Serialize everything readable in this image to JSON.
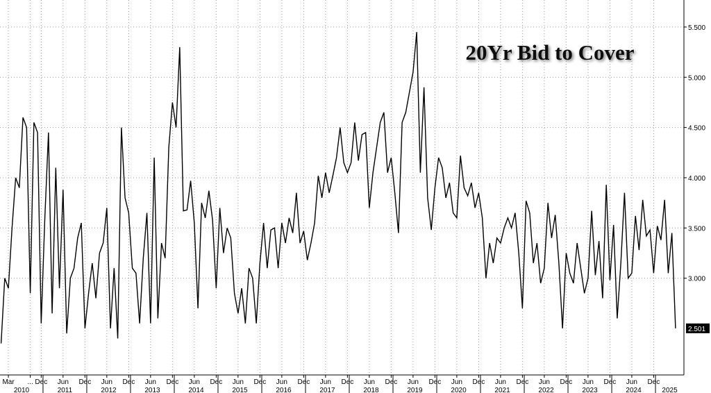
{
  "chart_data": {
    "type": "line",
    "title": "20Yr Bid to Cover",
    "color": "#000000",
    "values": [
      2.35,
      3.0,
      2.9,
      3.5,
      4.0,
      3.9,
      4.6,
      4.5,
      2.85,
      4.55,
      4.45,
      2.55,
      3.6,
      4.45,
      2.65,
      4.1,
      2.9,
      3.88,
      2.45,
      3.0,
      3.1,
      3.4,
      3.55,
      2.5,
      2.85,
      3.15,
      2.8,
      3.25,
      3.35,
      3.7,
      2.5,
      3.1,
      2.4,
      4.5,
      3.8,
      3.65,
      3.1,
      3.05,
      2.55,
      3.2,
      3.65,
      2.55,
      4.2,
      2.6,
      3.35,
      3.2,
      4.3,
      4.75,
      4.5,
      5.3,
      3.67,
      3.68,
      3.97,
      3.55,
      2.7,
      3.75,
      3.6,
      3.87,
      3.58,
      2.9,
      3.7,
      3.25,
      3.5,
      3.4,
      2.85,
      2.65,
      2.9,
      2.55,
      3.1,
      3.0,
      2.55,
      3.15,
      3.55,
      3.1,
      3.48,
      3.5,
      3.1,
      3.55,
      3.35,
      3.6,
      3.45,
      3.85,
      3.35,
      3.47,
      3.18,
      3.35,
      3.55,
      4.02,
      3.8,
      4.05,
      3.85,
      4.02,
      4.2,
      4.5,
      4.15,
      4.05,
      4.15,
      4.55,
      4.17,
      4.43,
      4.45,
      3.7,
      4.05,
      4.3,
      4.55,
      4.65,
      4.05,
      4.2,
      3.85,
      3.45,
      4.55,
      4.65,
      4.85,
      5.05,
      5.45,
      4.05,
      4.9,
      3.8,
      3.48,
      3.9,
      4.2,
      4.1,
      3.8,
      3.95,
      3.65,
      3.6,
      4.22,
      3.9,
      3.82,
      3.95,
      3.7,
      3.85,
      3.6,
      3.0,
      3.35,
      3.15,
      3.4,
      3.35,
      3.5,
      3.6,
      3.5,
      3.65,
      3.25,
      2.7,
      3.77,
      3.65,
      3.15,
      3.35,
      2.95,
      3.1,
      3.75,
      3.4,
      3.63,
      3.15,
      2.5,
      3.25,
      3.05,
      2.95,
      3.35,
      3.1,
      2.85,
      3.0,
      3.67,
      3.03,
      3.37,
      2.8,
      3.93,
      2.98,
      3.53,
      2.6,
      3.15,
      3.85,
      3.0,
      3.05,
      3.62,
      3.28,
      3.78,
      3.42,
      3.48,
      3.05,
      3.52,
      3.38,
      3.78,
      3.05,
      3.45,
      2.501
    ],
    "xlim": [
      -0.3,
      187.3
    ],
    "xticks": [
      {
        "value": 2,
        "label": "Mar"
      },
      {
        "value": 8,
        "label": "..."
      },
      {
        "value": 11,
        "label": "Dec"
      },
      {
        "value": 17,
        "label": "Jun"
      },
      {
        "value": 23,
        "label": "Dec"
      },
      {
        "value": 29,
        "label": "Jun"
      },
      {
        "value": 35,
        "label": "Dec"
      },
      {
        "value": 41,
        "label": "Jun"
      },
      {
        "value": 47,
        "label": "Dec"
      },
      {
        "value": 53,
        "label": "Jun"
      },
      {
        "value": 59,
        "label": "Dec"
      },
      {
        "value": 65,
        "label": "Jun"
      },
      {
        "value": 71,
        "label": "Dec"
      },
      {
        "value": 77,
        "label": "Jun"
      },
      {
        "value": 83,
        "label": "Dec"
      },
      {
        "value": 89,
        "label": "Jun"
      },
      {
        "value": 95,
        "label": "Dec"
      },
      {
        "value": 101,
        "label": "Jun"
      },
      {
        "value": 107,
        "label": "Dec"
      },
      {
        "value": 113,
        "label": "Jun"
      },
      {
        "value": 119,
        "label": "Dec"
      },
      {
        "value": 125,
        "label": "Jun"
      },
      {
        "value": 131,
        "label": "Dec"
      },
      {
        "value": 137,
        "label": "Jun"
      },
      {
        "value": 143,
        "label": "Dec"
      },
      {
        "value": 149,
        "label": "Jun"
      },
      {
        "value": 155,
        "label": "Dec"
      },
      {
        "value": 161,
        "label": "Jun"
      },
      {
        "value": 167,
        "label": "Dec"
      },
      {
        "value": 173,
        "label": "Jun"
      },
      {
        "value": 179,
        "label": "Dec"
      }
    ],
    "years": [
      "2010",
      "2011",
      "2012",
      "2013",
      "2014",
      "2015",
      "2016",
      "2017",
      "2018",
      "2019",
      "2020",
      "2021",
      "2022",
      "2023",
      "2024",
      "2025"
    ],
    "ylim": [
      2.037,
      5.769
    ],
    "yticks": [
      {
        "value": 3,
        "label": "3.000"
      },
      {
        "value": 3.5,
        "label": "3.500"
      },
      {
        "value": 4,
        "label": "4.000"
      },
      {
        "value": 4.5,
        "label": "4.500"
      },
      {
        "value": 5,
        "label": "5.000"
      },
      {
        "value": 5.5,
        "label": "5.500"
      }
    ],
    "grid": true
  }
}
